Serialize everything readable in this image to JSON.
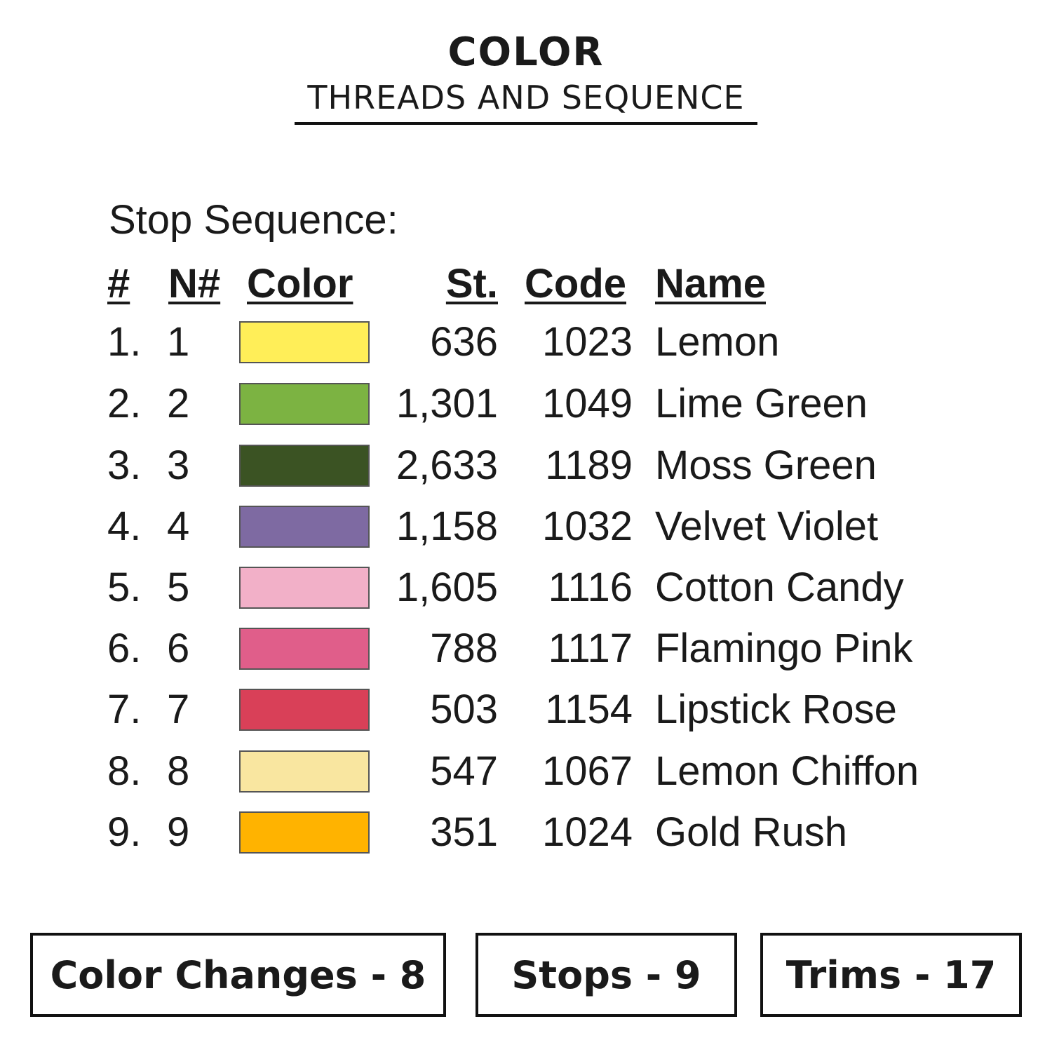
{
  "header": {
    "title": "COLOR",
    "subtitle": "THREADS AND SEQUENCE"
  },
  "section_label": "Stop Sequence:",
  "columns": {
    "index": "#",
    "needle": "N#",
    "color": "Color",
    "stitches": "St.",
    "code": "Code",
    "name": "Name"
  },
  "rows": [
    {
      "index": "1.",
      "needle": "1",
      "color": "#FFEE58",
      "stitches": "636",
      "code": "1023",
      "name": "Lemon"
    },
    {
      "index": "2.",
      "needle": "2",
      "color": "#7CB342",
      "stitches": "1,301",
      "code": "1049",
      "name": "Lime Green"
    },
    {
      "index": "3.",
      "needle": "3",
      "color": "#3B5323",
      "stitches": "2,633",
      "code": "1189",
      "name": "Moss Green"
    },
    {
      "index": "4.",
      "needle": "4",
      "color": "#7E6AA2",
      "stitches": "1,158",
      "code": "1032",
      "name": "Velvet Violet"
    },
    {
      "index": "5.",
      "needle": "5",
      "color": "#F2B0C8",
      "stitches": "1,605",
      "code": "1116",
      "name": "Cotton Candy"
    },
    {
      "index": "6.",
      "needle": "6",
      "color": "#E05E8A",
      "stitches": "788",
      "code": "1117",
      "name": "Flamingo Pink"
    },
    {
      "index": "7.",
      "needle": "7",
      "color": "#D94058",
      "stitches": "503",
      "code": "1154",
      "name": "Lipstick Rose"
    },
    {
      "index": "8.",
      "needle": "8",
      "color": "#F9E6A0",
      "stitches": "547",
      "code": "1067",
      "name": "Lemon Chiffon"
    },
    {
      "index": "9.",
      "needle": "9",
      "color": "#FFB300",
      "stitches": "351",
      "code": "1024",
      "name": "Gold Rush"
    }
  ],
  "stats": {
    "color_changes": "Color Changes - 8",
    "stops": "Stops - 9",
    "trims": "Trims - 17"
  }
}
